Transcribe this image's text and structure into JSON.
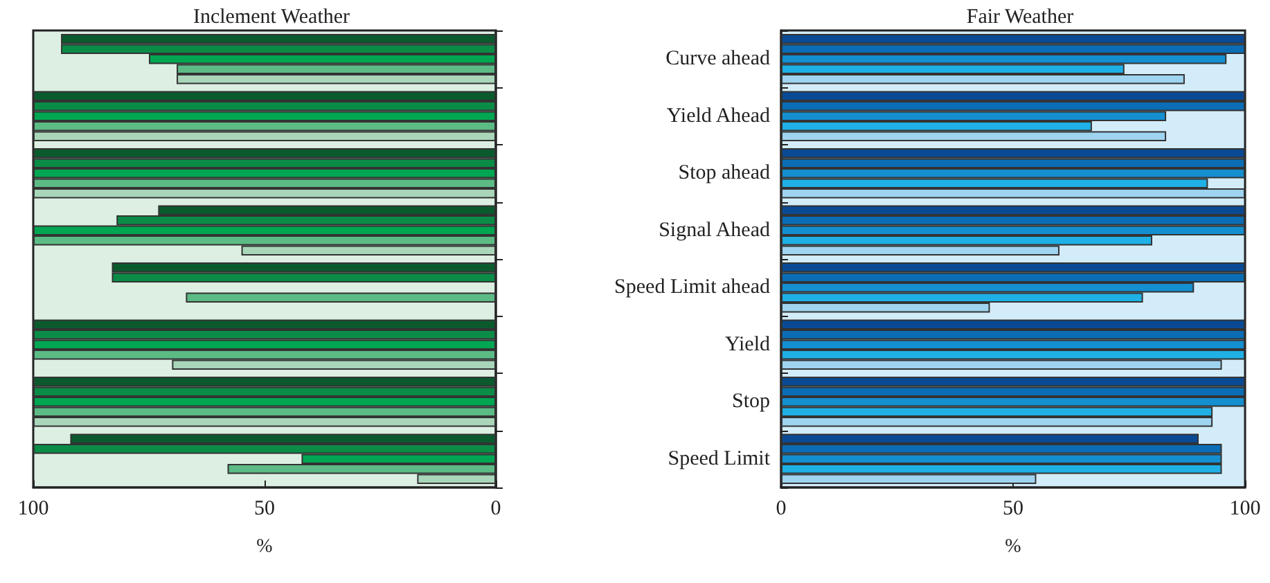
{
  "chart_data": [
    {
      "type": "bar",
      "orientation": "horizontal",
      "title": "Inclement Weather",
      "xlabel": "%",
      "tick_labels": "x",
      "categories": [
        null,
        null,
        null,
        null,
        null,
        null,
        null,
        null
      ],
      "series": [
        {
          "color": "#0b5a2e",
          "values": [
            94,
            100,
            100,
            73,
            83,
            100,
            100,
            92
          ]
        },
        {
          "color": "#0a8c47",
          "values": [
            94,
            100,
            100,
            82,
            83,
            100,
            100,
            100
          ]
        },
        {
          "color": "#00a651",
          "values": [
            75,
            100,
            100,
            100,
            null,
            100,
            100,
            42
          ]
        },
        {
          "color": "#5cbb85",
          "values": [
            69,
            100,
            100,
            100,
            67,
            100,
            100,
            58
          ]
        },
        {
          "color": "#a9d6b9",
          "values": [
            69,
            100,
            100,
            55,
            null,
            70,
            100,
            17
          ]
        }
      ],
      "xlim": [
        100,
        0
      ],
      "xticks": [
        100,
        50,
        0
      ],
      "grid": false
    },
    {
      "type": "bar",
      "orientation": "horizontal",
      "title": "Fair Weather",
      "xlabel": "%",
      "categories": [
        "Curve ahead",
        "Yield Ahead",
        "Stop ahead",
        "Signal Ahead",
        "Speed Limit ahead",
        "Yield",
        "Stop",
        "Speed Limit"
      ],
      "series": [
        {
          "color": "#0a4a94",
          "values": [
            100,
            100,
            100,
            100,
            100,
            100,
            100,
            90
          ]
        },
        {
          "color": "#0a6db5",
          "values": [
            100,
            100,
            100,
            100,
            100,
            100,
            100,
            95
          ]
        },
        {
          "color": "#148fd0",
          "values": [
            96,
            83,
            100,
            100,
            89,
            100,
            100,
            95
          ]
        },
        {
          "color": "#1fb0e6",
          "values": [
            74,
            67,
            92,
            80,
            78,
            100,
            93,
            95
          ]
        },
        {
          "color": "#9fd4f0",
          "values": [
            87,
            83,
            100,
            60,
            45,
            95,
            93,
            55
          ]
        }
      ],
      "xlim": [
        0,
        100
      ],
      "xticks": [
        0,
        50,
        100
      ],
      "grid": false
    }
  ]
}
